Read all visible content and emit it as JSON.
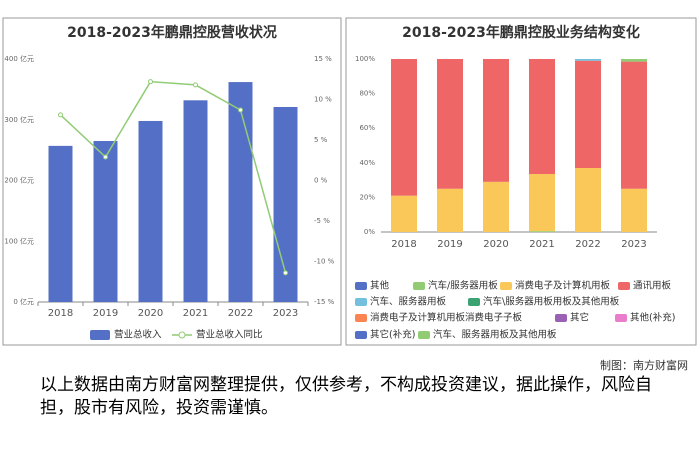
{
  "chart_data": [
    {
      "type": "bar",
      "title": "2018-2023年鹏鼎控股营收状况",
      "categories": [
        "2018",
        "2019",
        "2020",
        "2021",
        "2022",
        "2023"
      ],
      "series": [
        {
          "name": "营业总收入",
          "type": "bar",
          "color": "#5470c6",
          "values": [
            257,
            265,
            298,
            332,
            362,
            321
          ]
        },
        {
          "name": "营业总收入同比",
          "type": "line",
          "axis": "y2",
          "color": "#91cc75",
          "values": [
            8.1,
            2.9,
            12.2,
            11.8,
            8.7,
            -11.4
          ]
        }
      ],
      "ylim": [
        0,
        400
      ],
      "yticks": [
        {
          "value": 0,
          "label": "0 亿元"
        },
        {
          "value": 100,
          "label": "100 亿元"
        },
        {
          "value": 200,
          "label": "200 亿元"
        },
        {
          "value": 300,
          "label": "300 亿元"
        },
        {
          "value": 400,
          "label": "400 亿元"
        }
      ],
      "y2lim": [
        -15,
        15
      ],
      "y2ticks": [
        {
          "value": -15,
          "label": "-15 %"
        },
        {
          "value": -10,
          "label": "-10 %"
        },
        {
          "value": -5,
          "label": "-5 %"
        },
        {
          "value": 0,
          "label": "0 %"
        },
        {
          "value": 5,
          "label": "5 %"
        },
        {
          "value": 10,
          "label": "10 %"
        },
        {
          "value": 15,
          "label": "15 %"
        }
      ],
      "grid": false
    },
    {
      "type": "stacked_bar",
      "title": "2018-2023年鹏鼎控股业务结构变化",
      "categories": [
        "2018",
        "2019",
        "2020",
        "2021",
        "2022",
        "2023"
      ],
      "series": [
        {
          "name": "其他",
          "color": "#5470c6",
          "values": [
            0,
            0,
            0,
            0,
            0,
            0
          ]
        },
        {
          "name": "汽车/服务器用板",
          "color": "#91cc75",
          "values": [
            0,
            0,
            0,
            0.5,
            0,
            0
          ]
        },
        {
          "name": "消费电子及计算机用板",
          "color": "#fac858",
          "values": [
            21,
            25,
            29,
            33,
            37,
            25
          ]
        },
        {
          "name": "通讯用板",
          "color": "#ee6666",
          "values": [
            79,
            75,
            71,
            66.5,
            62,
            73.5
          ]
        },
        {
          "name": "汽车、服务器用板",
          "color": "#73c0de",
          "values": [
            0,
            0,
            0,
            0,
            1,
            0
          ]
        },
        {
          "name": "汽车\\服务器用板用板及其他用板",
          "color": "#3ba272",
          "values": [
            0,
            0,
            0,
            0,
            0,
            0
          ]
        },
        {
          "name": "消费电子及计算机用板消费电子子板",
          "color": "#fc8452",
          "values": [
            0,
            0,
            0,
            0,
            0,
            0
          ]
        },
        {
          "name": "其它",
          "color": "#9a60b4",
          "values": [
            0,
            0,
            0,
            0,
            0,
            0
          ]
        },
        {
          "name": "其他(补充)",
          "color": "#ea7ccc",
          "values": [
            0,
            0,
            0,
            0,
            0,
            0
          ]
        },
        {
          "name": "其它(补充)",
          "color": "#5470c6",
          "values": [
            0,
            0,
            0,
            0,
            0,
            0
          ]
        },
        {
          "name": "汽车、服务器用板及其他用板",
          "color": "#91cc75",
          "values": [
            0,
            0,
            0,
            0,
            0,
            1.5
          ]
        }
      ],
      "ylim": [
        0,
        100
      ],
      "yticks": [
        {
          "value": 0,
          "label": "0%"
        },
        {
          "value": 20,
          "label": "20%"
        },
        {
          "value": 40,
          "label": "40%"
        },
        {
          "value": 60,
          "label": "60%"
        },
        {
          "value": 80,
          "label": "80%"
        },
        {
          "value": 100,
          "label": "100%"
        }
      ],
      "grid": false
    }
  ],
  "footer": {
    "credit": "制图：南方财富网",
    "disclaimer": "以上数据由南方财富网整理提供，仅供参考，不构成投资建议，据此操作，风险自担，股市有风险，投资需谨慎。"
  }
}
